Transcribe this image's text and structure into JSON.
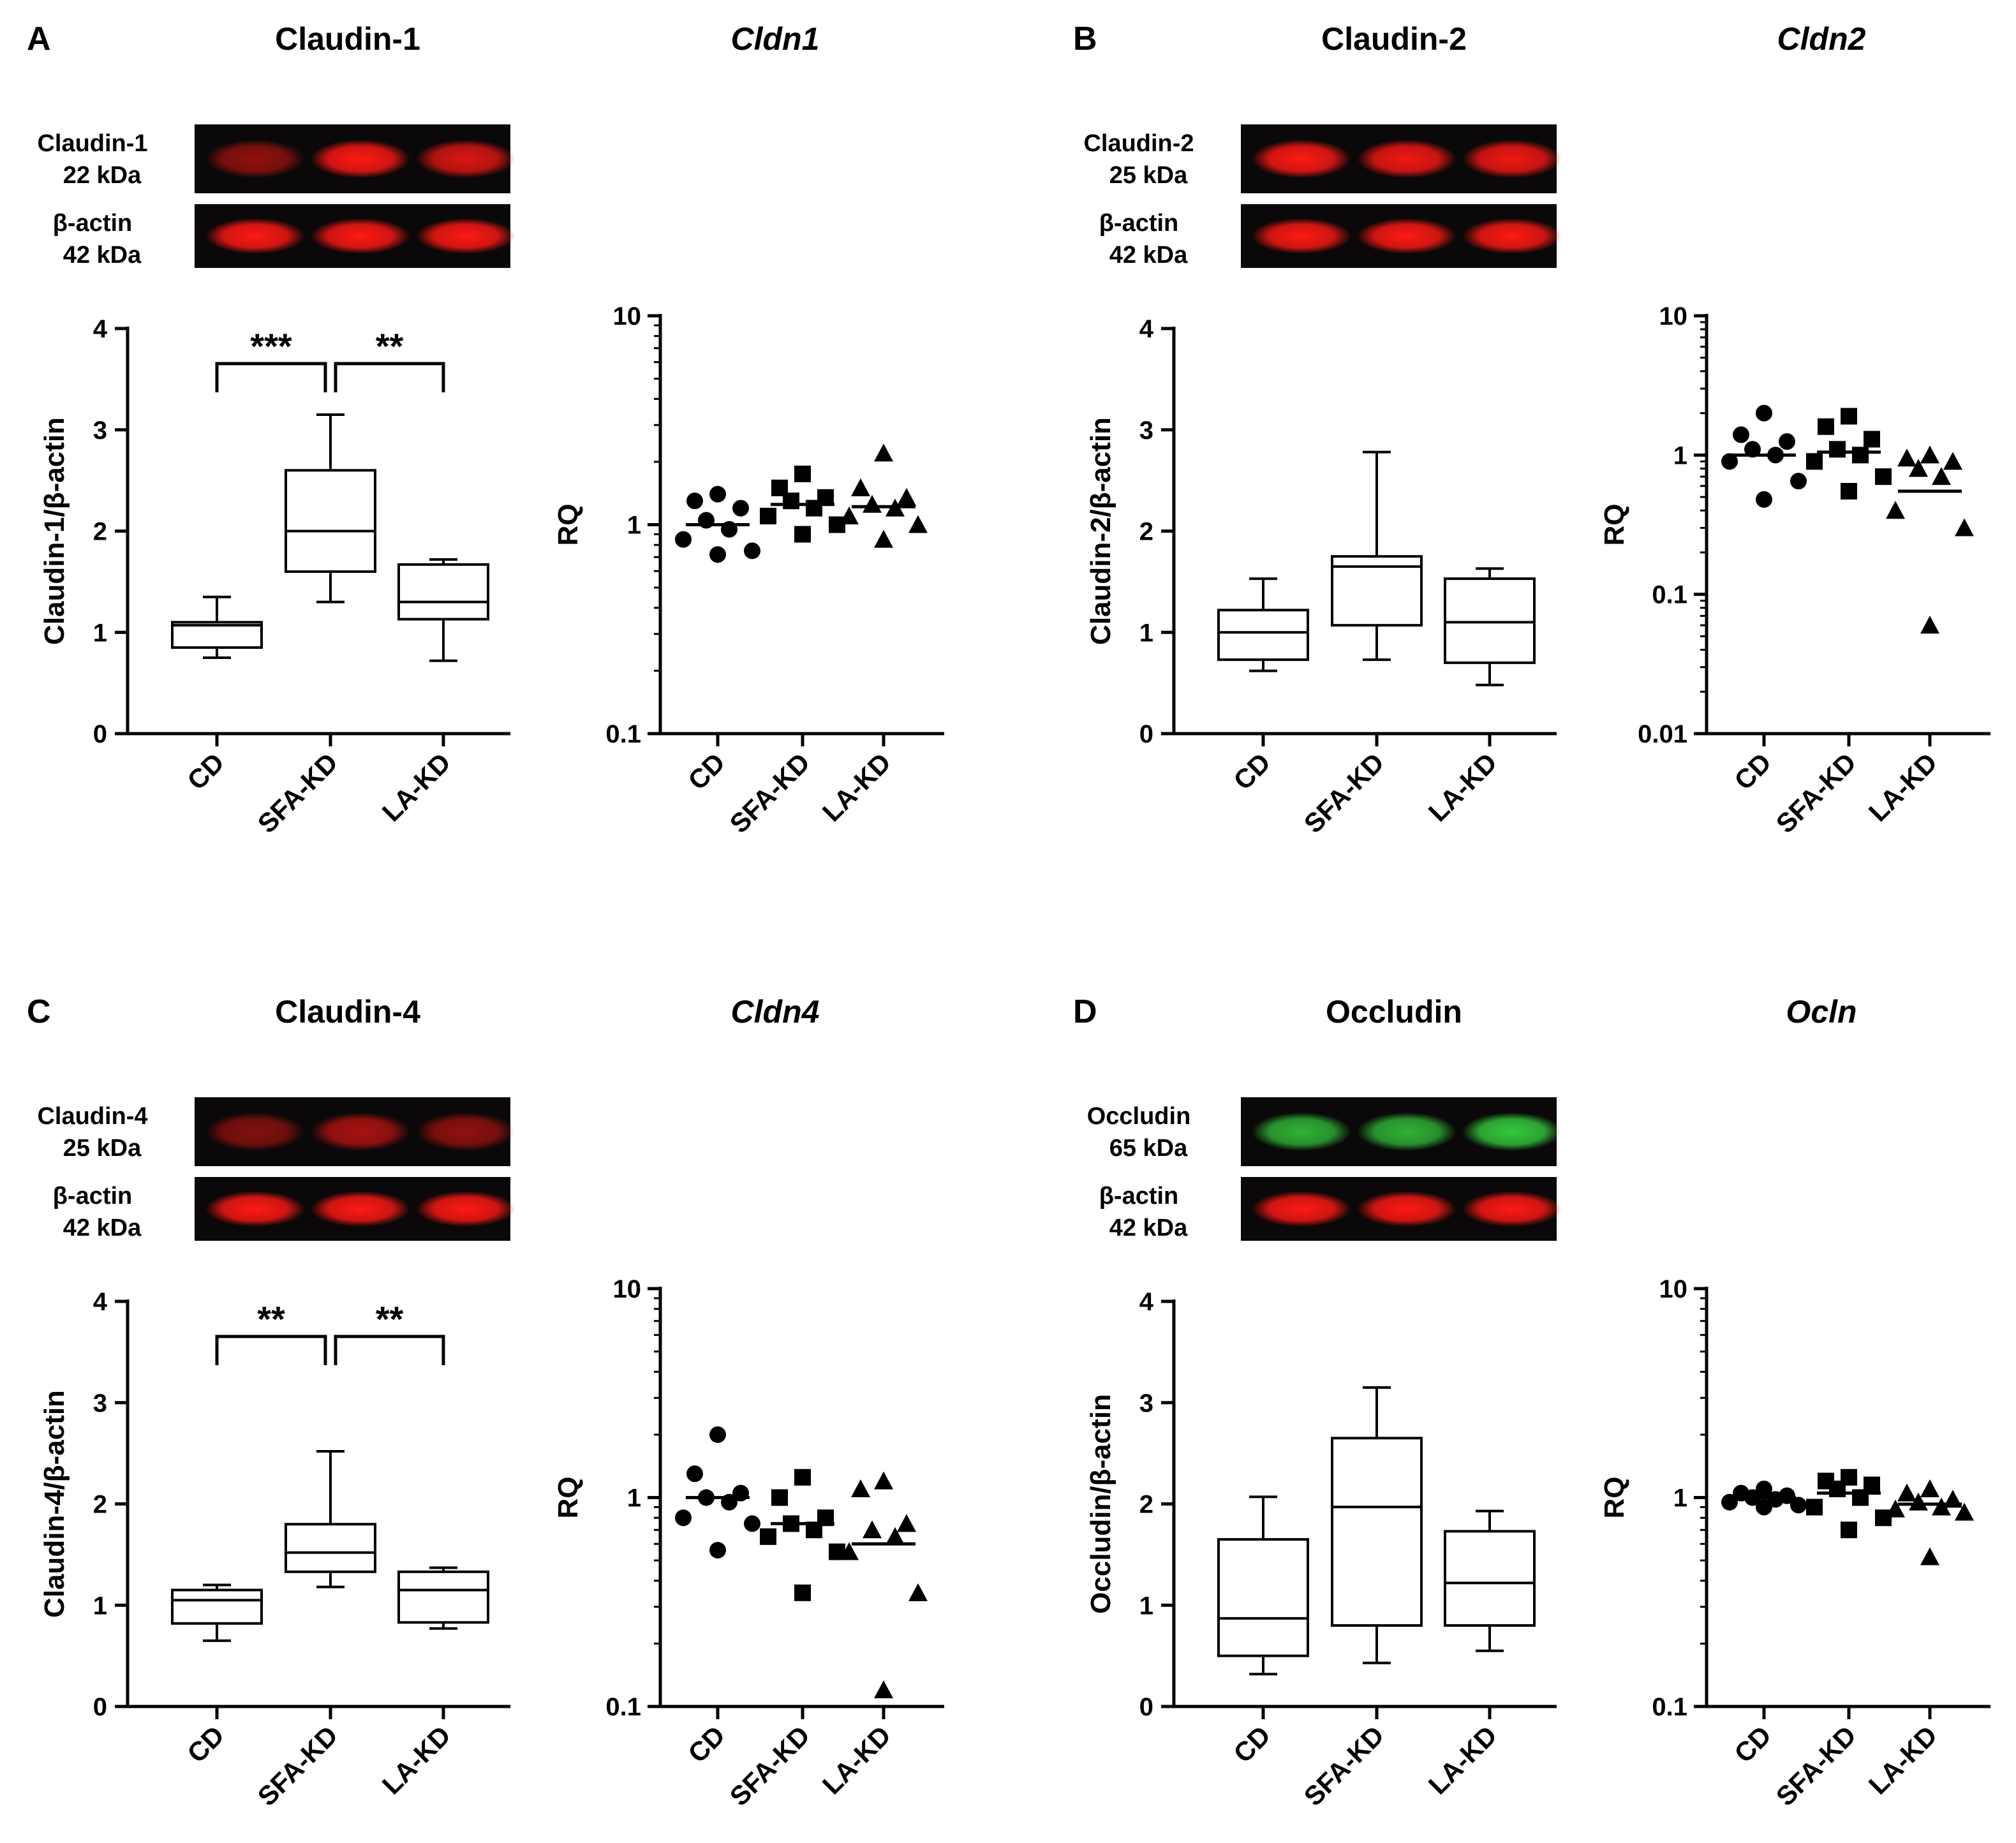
{
  "figure": {
    "groups": [
      "CD",
      "SFA-KD",
      "LA-KD"
    ],
    "panels": [
      {
        "letter": "A",
        "blot": {
          "title": "Claudin-1",
          "target_label": "Claudin-1",
          "target_size": "22 kDa",
          "loading_label": "β-actin",
          "loading_size": "42 kDa",
          "target_color": "red",
          "target_intensity": [
            0.55,
            1.0,
            0.85
          ],
          "loading_intensity": [
            1.0,
            1.0,
            1.0
          ]
        },
        "box": {
          "type": "box",
          "ylabel": "Claudin-1/β-actin",
          "ylim": [
            0,
            4
          ],
          "yticks": [
            "0",
            "1",
            "2",
            "3",
            "4"
          ],
          "groups": [
            "CD",
            "SFA-KD",
            "LA-KD"
          ],
          "boxes": [
            {
              "min": 0.75,
              "q1": 0.85,
              "median": 1.07,
              "q3": 1.1,
              "max": 1.35
            },
            {
              "min": 1.3,
              "q1": 1.6,
              "median": 2.0,
              "q3": 2.6,
              "max": 3.15
            },
            {
              "min": 0.72,
              "q1": 1.13,
              "median": 1.3,
              "q3": 1.67,
              "max": 1.72
            }
          ],
          "significance": [
            {
              "from": 0,
              "to": 1,
              "label": "***"
            },
            {
              "from": 1,
              "to": 2,
              "label": "**"
            }
          ]
        },
        "rq": {
          "type": "scatter",
          "title": "Cldn1",
          "ylabel": "RQ",
          "scale": "log",
          "yrange": [
            0.1,
            10
          ],
          "yticks": [
            "0.1",
            "1",
            "10"
          ],
          "groups": [
            "CD",
            "SFA-KD",
            "LA-KD"
          ],
          "points": [
            [
              1.4,
              1.3,
              1.2,
              1.05,
              0.95,
              0.85,
              0.75,
              0.72
            ],
            [
              1.75,
              1.5,
              1.35,
              1.3,
              1.2,
              1.1,
              1.0,
              0.9
            ],
            [
              2.2,
              1.5,
              1.35,
              1.25,
              1.2,
              1.1,
              1.0,
              0.85
            ]
          ],
          "means": [
            1.0,
            1.25,
            1.22
          ]
        }
      },
      {
        "letter": "B",
        "blot": {
          "title": "Claudin-2",
          "target_label": "Claudin-2",
          "target_size": "25 kDa",
          "loading_label": "β-actin",
          "loading_size": "42 kDa",
          "target_color": "red",
          "target_intensity": [
            1.0,
            0.95,
            0.95
          ],
          "loading_intensity": [
            1.0,
            1.0,
            1.0
          ]
        },
        "box": {
          "type": "box",
          "ylabel": "Claudin-2/β-actin",
          "ylim": [
            0,
            4
          ],
          "yticks": [
            "0",
            "1",
            "2",
            "3",
            "4"
          ],
          "groups": [
            "CD",
            "SFA-KD",
            "LA-KD"
          ],
          "boxes": [
            {
              "min": 0.62,
              "q1": 0.73,
              "median": 1.0,
              "q3": 1.22,
              "max": 1.53
            },
            {
              "min": 0.73,
              "q1": 1.07,
              "median": 1.65,
              "q3": 1.75,
              "max": 2.78
            },
            {
              "min": 0.48,
              "q1": 0.7,
              "median": 1.1,
              "q3": 1.53,
              "max": 1.63
            }
          ],
          "significance": []
        },
        "rq": {
          "type": "scatter",
          "title": "Cldn2",
          "ylabel": "RQ",
          "scale": "log",
          "yrange": [
            0.01,
            10
          ],
          "yticks": [
            "0.01",
            "0.1",
            "1",
            "10"
          ],
          "groups": [
            "CD",
            "SFA-KD",
            "LA-KD"
          ],
          "points": [
            [
              2.0,
              1.4,
              1.25,
              1.1,
              1.0,
              0.9,
              0.65,
              0.48
            ],
            [
              1.9,
              1.6,
              1.3,
              1.1,
              1.0,
              0.9,
              0.7,
              0.55
            ],
            [
              1.0,
              0.95,
              0.9,
              0.8,
              0.7,
              0.4,
              0.3,
              0.06
            ]
          ],
          "means": [
            1.0,
            1.05,
            0.55
          ]
        }
      },
      {
        "letter": "C",
        "blot": {
          "title": "Claudin-4",
          "target_label": "Claudin-4",
          "target_size": "25 kDa",
          "loading_label": "β-actin",
          "loading_size": "42 kDa",
          "target_color": "red",
          "target_intensity": [
            0.5,
            0.65,
            0.55
          ],
          "loading_intensity": [
            1.0,
            1.0,
            1.0
          ]
        },
        "box": {
          "type": "box",
          "ylabel": "Claudin-4/β-actin",
          "ylim": [
            0,
            4
          ],
          "yticks": [
            "0",
            "1",
            "2",
            "3",
            "4"
          ],
          "groups": [
            "CD",
            "SFA-KD",
            "LA-KD"
          ],
          "boxes": [
            {
              "min": 0.65,
              "q1": 0.82,
              "median": 1.05,
              "q3": 1.15,
              "max": 1.2
            },
            {
              "min": 1.18,
              "q1": 1.33,
              "median": 1.52,
              "q3": 1.8,
              "max": 2.52
            },
            {
              "min": 0.77,
              "q1": 0.83,
              "median": 1.15,
              "q3": 1.33,
              "max": 1.37
            }
          ],
          "significance": [
            {
              "from": 0,
              "to": 1,
              "label": "**"
            },
            {
              "from": 1,
              "to": 2,
              "label": "**"
            }
          ]
        },
        "rq": {
          "type": "scatter",
          "title": "Cldn4",
          "ylabel": "RQ",
          "scale": "log",
          "yrange": [
            0.1,
            10
          ],
          "yticks": [
            "0.1",
            "1",
            "10"
          ],
          "groups": [
            "CD",
            "SFA-KD",
            "LA-KD"
          ],
          "points": [
            [
              2.0,
              1.3,
              1.05,
              1.0,
              0.95,
              0.8,
              0.75,
              0.56
            ],
            [
              1.25,
              1.0,
              0.8,
              0.75,
              0.7,
              0.65,
              0.55,
              0.35
            ],
            [
              1.2,
              1.1,
              0.75,
              0.7,
              0.65,
              0.55,
              0.35,
              0.12
            ]
          ],
          "means": [
            1.0,
            0.75,
            0.6
          ]
        }
      },
      {
        "letter": "D",
        "blot": {
          "title": "Occludin",
          "target_label": "Occludin",
          "target_size": "65 kDa",
          "loading_label": "β-actin",
          "loading_size": "42 kDa",
          "target_color": "green",
          "target_intensity": [
            0.75,
            0.75,
            0.85
          ],
          "loading_intensity": [
            1.0,
            1.0,
            1.0
          ]
        },
        "box": {
          "type": "box",
          "ylabel": "Occludin/β-actin",
          "ylim": [
            0,
            4
          ],
          "yticks": [
            "0",
            "1",
            "2",
            "3",
            "4"
          ],
          "groups": [
            "CD",
            "SFA-KD",
            "LA-KD"
          ],
          "boxes": [
            {
              "min": 0.32,
              "q1": 0.5,
              "median": 0.87,
              "q3": 1.65,
              "max": 2.07
            },
            {
              "min": 0.43,
              "q1": 0.8,
              "median": 1.97,
              "q3": 2.65,
              "max": 3.15
            },
            {
              "min": 0.55,
              "q1": 0.8,
              "median": 1.22,
              "q3": 1.73,
              "max": 1.93
            }
          ],
          "significance": []
        },
        "rq": {
          "type": "scatter",
          "title": "Ocln",
          "ylabel": "RQ",
          "scale": "log",
          "yrange": [
            0.1,
            10
          ],
          "yticks": [
            "0.1",
            "1",
            "10"
          ],
          "groups": [
            "CD",
            "SFA-KD",
            "LA-KD"
          ],
          "points": [
            [
              1.1,
              1.05,
              1.02,
              1.0,
              0.98,
              0.95,
              0.92,
              0.9
            ],
            [
              1.25,
              1.2,
              1.15,
              1.1,
              1.0,
              0.9,
              0.8,
              0.7
            ],
            [
              1.1,
              1.05,
              0.98,
              0.95,
              0.9,
              0.88,
              0.85,
              0.52
            ]
          ],
          "means": [
            1.0,
            1.05,
            0.93
          ]
        }
      }
    ]
  }
}
